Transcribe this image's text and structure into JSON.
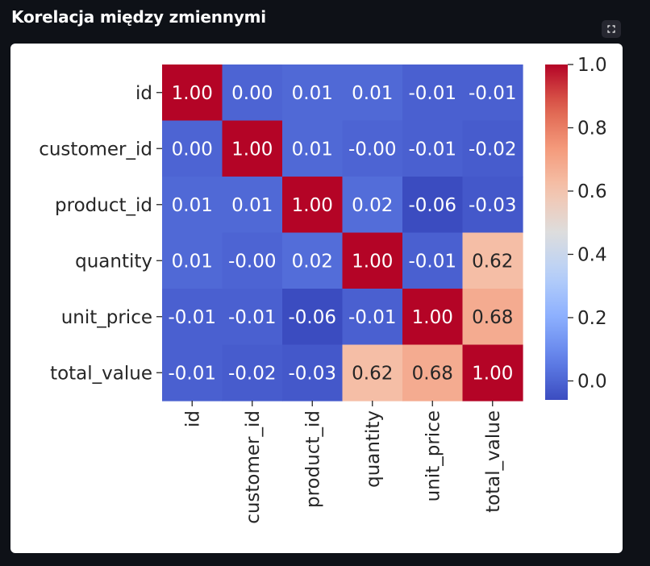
{
  "page": {
    "title": "Korelacja między zmiennymi",
    "fullscreen_icon": "expand-icon"
  },
  "chart_data": {
    "type": "heatmap",
    "title": "",
    "colormap": "coolwarm",
    "value_range": [
      -0.06,
      1.0
    ],
    "row_labels": [
      "id",
      "customer_id",
      "product_id",
      "quantity",
      "unit_price",
      "total_value"
    ],
    "col_labels": [
      "id",
      "customer_id",
      "product_id",
      "quantity",
      "unit_price",
      "total_value"
    ],
    "values": [
      [
        1.0,
        0.0,
        0.01,
        0.01,
        -0.01,
        -0.01
      ],
      [
        0.0,
        1.0,
        0.01,
        -0.0,
        -0.01,
        -0.02
      ],
      [
        0.01,
        0.01,
        1.0,
        0.02,
        -0.06,
        -0.03
      ],
      [
        0.01,
        -0.0,
        0.02,
        1.0,
        -0.01,
        0.62
      ],
      [
        -0.01,
        -0.01,
        -0.06,
        -0.01,
        1.0,
        0.68
      ],
      [
        -0.01,
        -0.02,
        -0.03,
        0.62,
        0.68,
        1.0
      ]
    ],
    "cell_labels": [
      [
        "1.00",
        "0.00",
        "0.01",
        "0.01",
        "-0.01",
        "-0.01"
      ],
      [
        "0.00",
        "1.00",
        "0.01",
        "-0.00",
        "-0.01",
        "-0.02"
      ],
      [
        "0.01",
        "0.01",
        "1.00",
        "0.02",
        "-0.06",
        "-0.03"
      ],
      [
        "0.01",
        "-0.00",
        "0.02",
        "1.00",
        "-0.01",
        "0.62"
      ],
      [
        "-0.01",
        "-0.01",
        "-0.06",
        "-0.01",
        "1.00",
        "0.68"
      ],
      [
        "-0.01",
        "-0.02",
        "-0.03",
        "0.62",
        "0.68",
        "1.00"
      ]
    ],
    "colorbar": {
      "ticks": [
        0.0,
        0.2,
        0.4,
        0.6,
        0.8,
        1.0
      ],
      "tick_labels": [
        "0.0",
        "0.2",
        "0.4",
        "0.6",
        "0.8",
        "1.0"
      ]
    }
  }
}
